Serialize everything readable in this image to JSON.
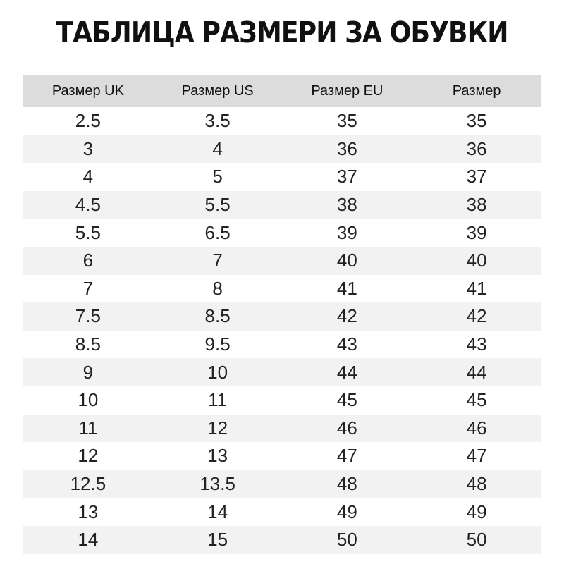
{
  "title": "ТАБЛИЦА РАЗМЕРИ ЗА ОБУВКИ",
  "colors": {
    "header_bg": "#dcdcdc",
    "stripe_bg": "#f2f2f2"
  },
  "table": {
    "headers": [
      "Размер UK",
      "Размер US",
      "Размер EU",
      "Размер"
    ],
    "rows": [
      [
        "2.5",
        "3.5",
        "35",
        "35"
      ],
      [
        "3",
        "4",
        "36",
        "36"
      ],
      [
        "4",
        "5",
        "37",
        "37"
      ],
      [
        "4.5",
        "5.5",
        "38",
        "38"
      ],
      [
        "5.5",
        "6.5",
        "39",
        "39"
      ],
      [
        "6",
        "7",
        "40",
        "40"
      ],
      [
        "7",
        "8",
        "41",
        "41"
      ],
      [
        "7.5",
        "8.5",
        "42",
        "42"
      ],
      [
        "8.5",
        "9.5",
        "43",
        "43"
      ],
      [
        "9",
        "10",
        "44",
        "44"
      ],
      [
        "10",
        "11",
        "45",
        "45"
      ],
      [
        "11",
        "12",
        "46",
        "46"
      ],
      [
        "12",
        "13",
        "47",
        "47"
      ],
      [
        "12.5",
        "13.5",
        "48",
        "48"
      ],
      [
        "13",
        "14",
        "49",
        "49"
      ],
      [
        "14",
        "15",
        "50",
        "50"
      ]
    ]
  }
}
